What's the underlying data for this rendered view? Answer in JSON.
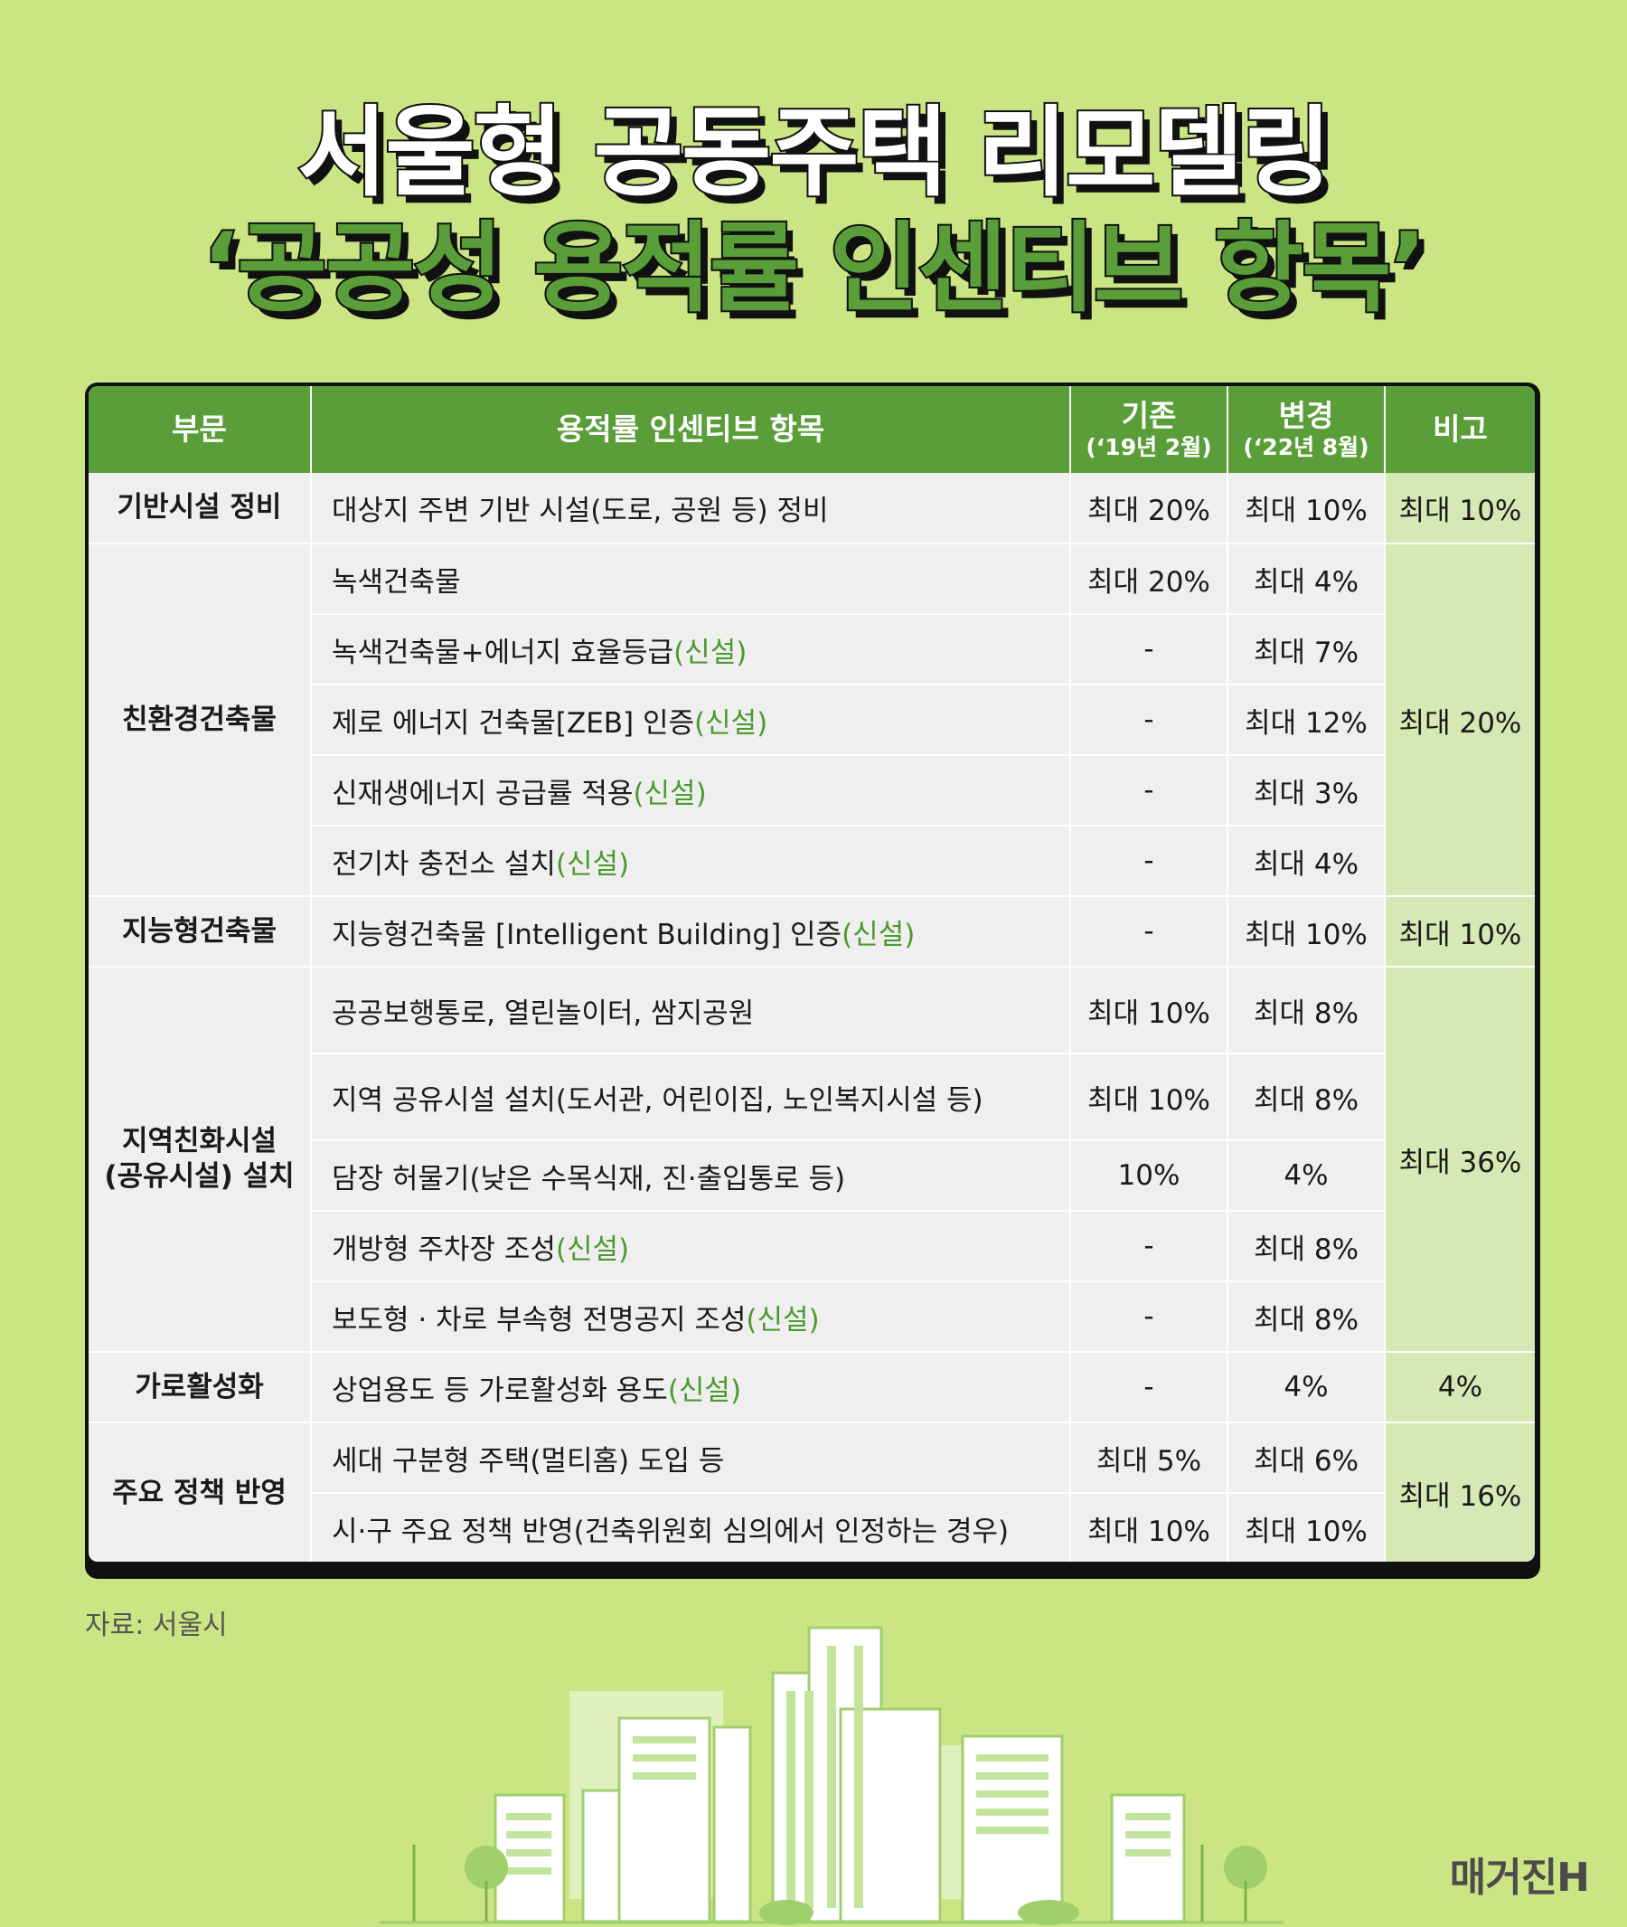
{
  "title": {
    "line1": "서울형 공동주택 리모델링",
    "line2": "‘공공성 용적률 인센티브 항목’"
  },
  "table": {
    "headers": {
      "section": "부문",
      "item": "용적률 인센티브 항목",
      "before": "기존",
      "before_sub": "(‘19년 2월)",
      "after": "변경",
      "after_sub": "(‘22년 8월)",
      "note": "비고"
    },
    "groups": [
      {
        "section": "기반시설 정비",
        "note": "최대 10%",
        "rows": [
          {
            "item": "대상지 주변 기반 시설(도로, 공원 등) 정비",
            "new": "",
            "before": "최대 20%",
            "after": "최대 10%"
          }
        ]
      },
      {
        "section": "친환경건축물",
        "note": "최대 20%",
        "rows": [
          {
            "item": "녹색건축물",
            "new": "",
            "before": "최대 20%",
            "after": "최대 4%"
          },
          {
            "item": "녹색건축물+에너지 효율등급",
            "new": "(신설)",
            "before": "-",
            "after": "최대 7%"
          },
          {
            "item": "제로 에너지 건축물[ZEB] 인증",
            "new": "(신설)",
            "before": "-",
            "after": "최대 12%"
          },
          {
            "item": "신재생에너지 공급률 적용",
            "new": "(신설)",
            "before": "-",
            "after": "최대 3%"
          },
          {
            "item": "전기차 충전소 설치",
            "new": "(신설)",
            "before": "-",
            "after": "최대 4%"
          }
        ]
      },
      {
        "section": "지능형건축물",
        "note": "최대 10%",
        "rows": [
          {
            "item": "지능형건축물 [Intelligent Building] 인증",
            "new": "(신설)",
            "before": "-",
            "after": "최대 10%"
          }
        ]
      },
      {
        "section": "지역친화시설",
        "section2": "(공유시설) 설치",
        "note": "최대 36%",
        "rows": [
          {
            "item": "공공보행통로, 열린놀이터, 쌈지공원",
            "new": "",
            "before": "최대 10%",
            "after": "최대 8%"
          },
          {
            "item": "지역 공유시설 설치(도서관, 어린이집, 노인복지시설 등)",
            "new": "",
            "before": "최대 10%",
            "after": "최대 8%"
          },
          {
            "item": "담장 허물기(낮은 수목식재, 진·출입통로 등)",
            "new": "",
            "before": "10%",
            "after": "4%"
          },
          {
            "item": "개방형 주차장 조성",
            "new": "(신설)",
            "before": "-",
            "after": "최대 8%"
          },
          {
            "item": "보도형 · 차로 부속형 전명공지 조성",
            "new": "(신설)",
            "before": "-",
            "after": "최대 8%"
          }
        ]
      },
      {
        "section": "가로활성화",
        "note": "4%",
        "rows": [
          {
            "item": "상업용도 등 가로활성화 용도",
            "new": "(신설)",
            "before": "-",
            "after": "4%"
          }
        ]
      },
      {
        "section": "주요 정책 반영",
        "note": "최대 16%",
        "rows": [
          {
            "item": "세대 구분형 주택(멀티홈) 도입 등",
            "new": "",
            "before": "최대 5%",
            "after": "최대 6%"
          },
          {
            "item": "시·구 주요 정책 반영(건축위원회 심의에서 인정하는 경우)",
            "new": "",
            "before": "최대 10%",
            "after": "최대 10%"
          }
        ]
      }
    ]
  },
  "source": "자료: 서울시",
  "brand": "매거진H",
  "colors": {
    "background": "#cbe584",
    "header_green": "#5a9e39",
    "new_label": "#4c9a2e",
    "note_cell": "#d6e8b4"
  }
}
